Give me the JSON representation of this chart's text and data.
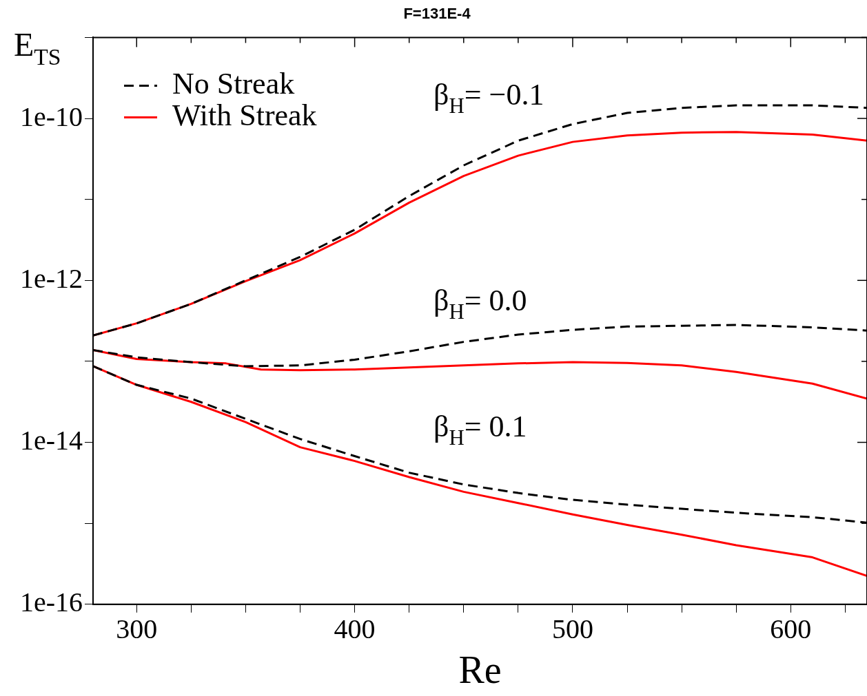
{
  "chart_data": {
    "type": "line",
    "title": "F=131E-4",
    "xlabel": "Re",
    "ylabel": "E$_{TS}$",
    "log": "y",
    "grid": false,
    "legend": "top left",
    "marker": "none",
    "xlim": [
      280,
      635
    ],
    "xticks": [
      300,
      {
        "value": 325,
        "label": null
      },
      {
        "value": 350,
        "label": null
      },
      {
        "value": 375,
        "label": null
      },
      400,
      {
        "value": 425,
        "label": null
      },
      {
        "value": 450,
        "label": null
      },
      {
        "value": 475,
        "label": null
      },
      500,
      {
        "value": 525,
        "label": null
      },
      {
        "value": 550,
        "label": null
      },
      {
        "value": 575,
        "label": null
      },
      600,
      {
        "value": 625,
        "label": null
      }
    ],
    "ylim": [
      1e-16,
      1e-09
    ],
    "yticks": [
      1e-16,
      {
        "value": 1e-15,
        "label": null
      },
      1e-14,
      {
        "value": 1e-13,
        "label": null
      },
      1e-12,
      {
        "value": 1e-11,
        "label": null
      },
      1e-10,
      {
        "value": 1e-09,
        "label": null
      }
    ],
    "annotations": [
      "β$_{H}$= −0.1",
      "β$_{H}$= 0.0",
      "β$_{H}$= 0.1"
    ],
    "series": [
      {
        "name": "No Streak",
        "color": "#000000",
        "line_style": "dashed",
        "x": [
          280,
          300,
          325,
          350,
          375,
          400,
          425,
          450,
          475,
          500,
          525,
          550,
          575,
          610,
          635
        ],
        "values": [
          2.09e-13,
          2.95e-13,
          5.13e-13,
          1e-12,
          1.95e-12,
          4.22e-12,
          1.1e-11,
          2.63e-11,
          5.31e-11,
          8.51e-11,
          1.17e-10,
          1.35e-10,
          1.45e-10,
          1.45e-10,
          1.35e-10
        ]
      },
      {
        "name": "With Streak",
        "color": "#ff0000",
        "line_style": "solid",
        "x": [
          280,
          300,
          325,
          350,
          375,
          400,
          425,
          450,
          475,
          500,
          525,
          550,
          575,
          610,
          635
        ],
        "values": [
          2.09e-13,
          2.95e-13,
          5.13e-13,
          9.77e-13,
          1.78e-12,
          3.8e-12,
          9.12e-12,
          1.95e-11,
          3.47e-11,
          5.13e-11,
          6.17e-11,
          6.68e-11,
          6.81e-11,
          6.31e-11,
          5.31e-11
        ]
      },
      {
        "color": "#000000",
        "line_style": "dashed",
        "x": [
          280,
          300,
          325,
          350,
          375,
          400,
          425,
          450,
          475,
          500,
          525,
          550,
          575,
          610,
          635
        ],
        "values": [
          1.38e-13,
          1.12e-13,
          9.77e-14,
          8.71e-14,
          8.91e-14,
          1.05e-13,
          1.33e-13,
          1.74e-13,
          2.14e-13,
          2.45e-13,
          2.69e-13,
          2.75e-13,
          2.82e-13,
          2.63e-13,
          2.4e-13
        ]
      },
      {
        "color": "#ff0000",
        "line_style": "solid",
        "x": [
          280,
          300,
          325,
          341,
          357,
          375,
          400,
          425,
          450,
          475,
          500,
          525,
          550,
          575,
          610,
          635
        ],
        "values": [
          1.38e-13,
          1.07e-13,
          9.77e-14,
          9.44e-14,
          7.94e-14,
          7.76e-14,
          7.94e-14,
          8.41e-14,
          8.91e-14,
          9.44e-14,
          9.77e-14,
          9.55e-14,
          8.91e-14,
          7.41e-14,
          5.31e-14,
          3.47e-14
        ]
      },
      {
        "color": "#000000",
        "line_style": "dashed",
        "x": [
          280,
          300,
          325,
          350,
          375,
          400,
          425,
          450,
          475,
          500,
          525,
          550,
          575,
          610,
          635
        ],
        "values": [
          8.71e-14,
          5.13e-14,
          3.47e-14,
          1.95e-14,
          1.1e-14,
          6.76e-15,
          4.22e-15,
          3.02e-15,
          2.37e-15,
          1.95e-15,
          1.7e-15,
          1.51e-15,
          1.35e-15,
          1.19e-15,
          1.02e-15
        ]
      },
      {
        "color": "#ff0000",
        "line_style": "solid",
        "x": [
          280,
          300,
          325,
          350,
          375,
          400,
          425,
          450,
          475,
          500,
          525,
          550,
          575,
          610,
          635
        ],
        "values": [
          8.71e-14,
          5.13e-14,
          3.16e-14,
          1.78e-14,
          8.71e-15,
          5.89e-15,
          3.72e-15,
          2.45e-15,
          1.78e-15,
          1.29e-15,
          9.55e-16,
          7.24e-16,
          5.37e-16,
          3.8e-16,
          2.24e-16
        ]
      }
    ]
  }
}
